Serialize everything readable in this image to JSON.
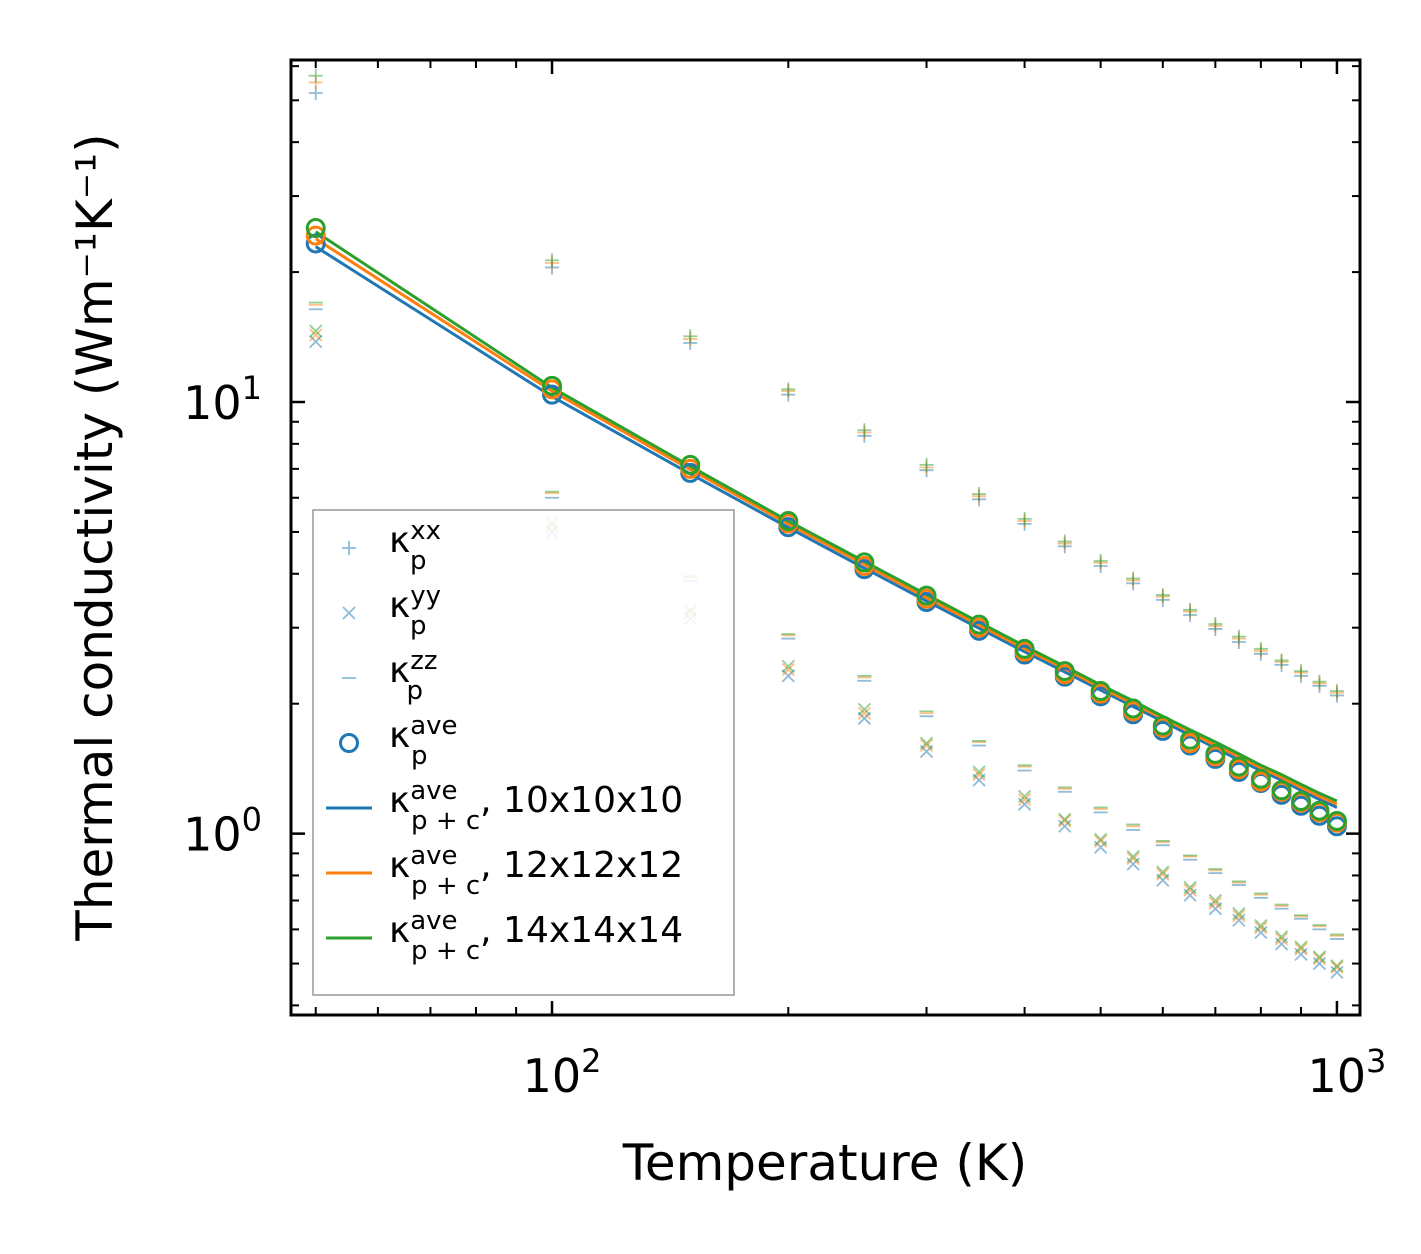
{
  "chart_data": {
    "type": "scatter",
    "title": "",
    "xlabel": "Temperature (K)",
    "ylabel": "Thermal conductivity (Wm⁻¹K⁻¹)",
    "xscale": "log",
    "yscale": "log",
    "xlim": [
      46.5,
      1070
    ],
    "ylim": [
      0.38,
      62
    ],
    "x_major_ticks": [
      {
        "base": "10",
        "exp": "2",
        "value": 100
      },
      {
        "base": "10",
        "exp": "3",
        "value": 1000
      }
    ],
    "y_major_ticks": [
      {
        "base": "10",
        "exp": "0",
        "value": 1
      },
      {
        "base": "10",
        "exp": "1",
        "value": 10
      }
    ],
    "x": [
      50,
      100,
      150,
      200,
      250,
      300,
      350,
      400,
      450,
      500,
      550,
      600,
      650,
      700,
      750,
      800,
      850,
      900,
      950,
      1000
    ],
    "legend_position": "lower-left",
    "colors": {
      "blue": "#1f77b4",
      "orange": "#ff7f0e",
      "green": "#2ca02c"
    },
    "meshes": [
      {
        "color_key": "blue",
        "kxx": [
          52,
          20.5,
          13.7,
          10.4,
          8.35,
          6.95,
          5.95,
          5.22,
          4.63,
          4.17,
          3.8,
          3.48,
          3.21,
          2.98,
          2.78,
          2.61,
          2.46,
          2.32,
          2.2,
          2.09
        ],
        "kyy": [
          13.8,
          5.0,
          3.15,
          2.32,
          1.85,
          1.55,
          1.33,
          1.17,
          1.04,
          0.93,
          0.85,
          0.78,
          0.72,
          0.67,
          0.63,
          0.59,
          0.555,
          0.525,
          0.5,
          0.477
        ],
        "kzz": [
          16.4,
          6.0,
          3.85,
          2.83,
          2.26,
          1.87,
          1.6,
          1.4,
          1.25,
          1.12,
          1.02,
          0.94,
          0.87,
          0.81,
          0.76,
          0.71,
          0.67,
          0.635,
          0.6,
          0.57
        ],
        "kave": [
          23.3,
          10.4,
          6.85,
          5.13,
          4.1,
          3.44,
          2.95,
          2.6,
          2.31,
          2.08,
          1.89,
          1.73,
          1.6,
          1.49,
          1.39,
          1.31,
          1.23,
          1.16,
          1.1,
          1.04
        ],
        "kpc": [
          22.9,
          10.3,
          6.82,
          5.12,
          4.12,
          3.46,
          2.99,
          2.64,
          2.37,
          2.15,
          1.97,
          1.82,
          1.69,
          1.58,
          1.48,
          1.4,
          1.33,
          1.26,
          1.2,
          1.15
        ]
      },
      {
        "color_key": "orange",
        "kxx": [
          55,
          21.0,
          14.0,
          10.6,
          8.5,
          7.05,
          6.05,
          5.3,
          4.7,
          4.24,
          3.86,
          3.54,
          3.27,
          3.03,
          2.83,
          2.65,
          2.5,
          2.36,
          2.23,
          2.12
        ],
        "kyy": [
          14.3,
          5.15,
          3.25,
          2.4,
          1.9,
          1.6,
          1.37,
          1.2,
          1.07,
          0.96,
          0.875,
          0.805,
          0.74,
          0.69,
          0.645,
          0.605,
          0.57,
          0.54,
          0.513,
          0.49
        ],
        "kzz": [
          16.8,
          6.15,
          3.92,
          2.88,
          2.3,
          1.9,
          1.63,
          1.43,
          1.27,
          1.14,
          1.04,
          0.955,
          0.885,
          0.822,
          0.77,
          0.722,
          0.68,
          0.643,
          0.61,
          0.58
        ],
        "kave": [
          24.3,
          10.7,
          7.0,
          5.23,
          4.17,
          3.5,
          3.0,
          2.64,
          2.34,
          2.11,
          1.92,
          1.76,
          1.62,
          1.51,
          1.41,
          1.32,
          1.25,
          1.18,
          1.12,
          1.06
        ],
        "kpc": [
          23.9,
          10.6,
          6.98,
          5.22,
          4.2,
          3.52,
          3.04,
          2.68,
          2.41,
          2.18,
          2.0,
          1.85,
          1.72,
          1.6,
          1.51,
          1.42,
          1.35,
          1.28,
          1.22,
          1.17
        ]
      },
      {
        "color_key": "green",
        "kxx": [
          57,
          21.3,
          14.2,
          10.7,
          8.6,
          7.15,
          6.12,
          5.36,
          4.75,
          4.28,
          3.9,
          3.57,
          3.3,
          3.06,
          2.86,
          2.68,
          2.52,
          2.38,
          2.25,
          2.14
        ],
        "kyy": [
          14.6,
          5.25,
          3.3,
          2.44,
          1.94,
          1.62,
          1.39,
          1.22,
          1.08,
          0.97,
          0.885,
          0.815,
          0.75,
          0.7,
          0.653,
          0.612,
          0.577,
          0.546,
          0.518,
          0.494
        ],
        "kzz": [
          17.0,
          6.2,
          3.95,
          2.9,
          2.32,
          1.92,
          1.64,
          1.44,
          1.28,
          1.15,
          1.05,
          0.962,
          0.89,
          0.828,
          0.775,
          0.727,
          0.685,
          0.647,
          0.614,
          0.584
        ],
        "kave": [
          25.3,
          10.9,
          7.15,
          5.3,
          4.25,
          3.56,
          3.05,
          2.68,
          2.38,
          2.14,
          1.95,
          1.78,
          1.65,
          1.53,
          1.43,
          1.34,
          1.26,
          1.19,
          1.13,
          1.07
        ],
        "kpc": [
          24.8,
          10.8,
          7.1,
          5.3,
          4.27,
          3.58,
          3.09,
          2.72,
          2.44,
          2.21,
          2.03,
          1.87,
          1.74,
          1.63,
          1.53,
          1.44,
          1.37,
          1.3,
          1.24,
          1.19
        ]
      }
    ],
    "legend": [
      {
        "symbol": "plus",
        "label": "κ",
        "sub": "p",
        "sup": "xx",
        "suffix": ""
      },
      {
        "symbol": "cross",
        "label": "κ",
        "sub": "p",
        "sup": "yy",
        "suffix": ""
      },
      {
        "symbol": "dash",
        "label": "κ",
        "sub": "p",
        "sup": "zz",
        "suffix": ""
      },
      {
        "symbol": "circle",
        "label": "κ",
        "sub": "p",
        "sup": "ave",
        "suffix": ""
      },
      {
        "symbol": "line-blue",
        "label": "κ",
        "sub": "p + c",
        "sup": "ave",
        "suffix": ", 10x10x10"
      },
      {
        "symbol": "line-orange",
        "label": "κ",
        "sub": "p + c",
        "sup": "ave",
        "suffix": ", 12x12x12"
      },
      {
        "symbol": "line-green",
        "label": "κ",
        "sub": "p + c",
        "sup": "ave",
        "suffix": ", 14x14x14"
      }
    ]
  }
}
